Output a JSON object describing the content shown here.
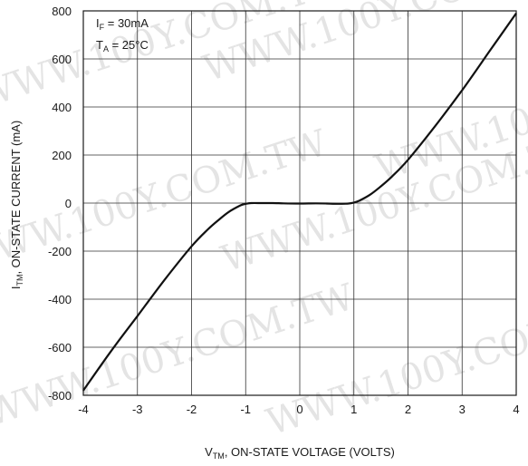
{
  "chart_data": {
    "type": "line",
    "xlabel_prefix": "V",
    "xlabel_sub": "TM",
    "xlabel_rest": ", ON-STATE VOLTAGE (VOLTS)",
    "ylabel_prefix": "I",
    "ylabel_sub": "TM",
    "ylabel_rest": ", ON-STATE CURRENT (mA)",
    "xlim": [
      -4,
      4
    ],
    "ylim": [
      -800,
      800
    ],
    "xticks": [
      -4,
      -3,
      -2,
      -1,
      0,
      1,
      2,
      3,
      4
    ],
    "yticks": [
      800,
      600,
      400,
      200,
      0,
      -200,
      -400,
      -600,
      -800
    ],
    "grid": true,
    "annotations": [
      {
        "prefix": "I",
        "sub": "F",
        "rest": " = 30mA"
      },
      {
        "prefix": "T",
        "sub": "A",
        "rest": " = 25°C"
      }
    ],
    "watermark": "WWW.100Y.COM.TW",
    "series": [
      {
        "x": [
          -4.0,
          -3.5,
          -3.0,
          -2.5,
          -2.0,
          -1.7,
          -1.5,
          -1.3,
          -1.1,
          -1.0,
          -0.9,
          -0.7,
          -0.5,
          -0.3,
          0.0,
          0.3,
          0.5,
          0.7,
          0.9,
          1.0,
          1.1,
          1.3,
          1.5,
          1.7,
          2.0,
          2.5,
          3.0,
          3.5,
          4.0
        ],
        "y": [
          -780,
          -620,
          -470,
          -320,
          -180,
          -110,
          -70,
          -35,
          -10,
          -3,
          0,
          0,
          0,
          -1,
          -2,
          -1,
          -2,
          -3,
          -2,
          2,
          10,
          35,
          70,
          110,
          180,
          320,
          470,
          630,
          790
        ]
      }
    ]
  }
}
